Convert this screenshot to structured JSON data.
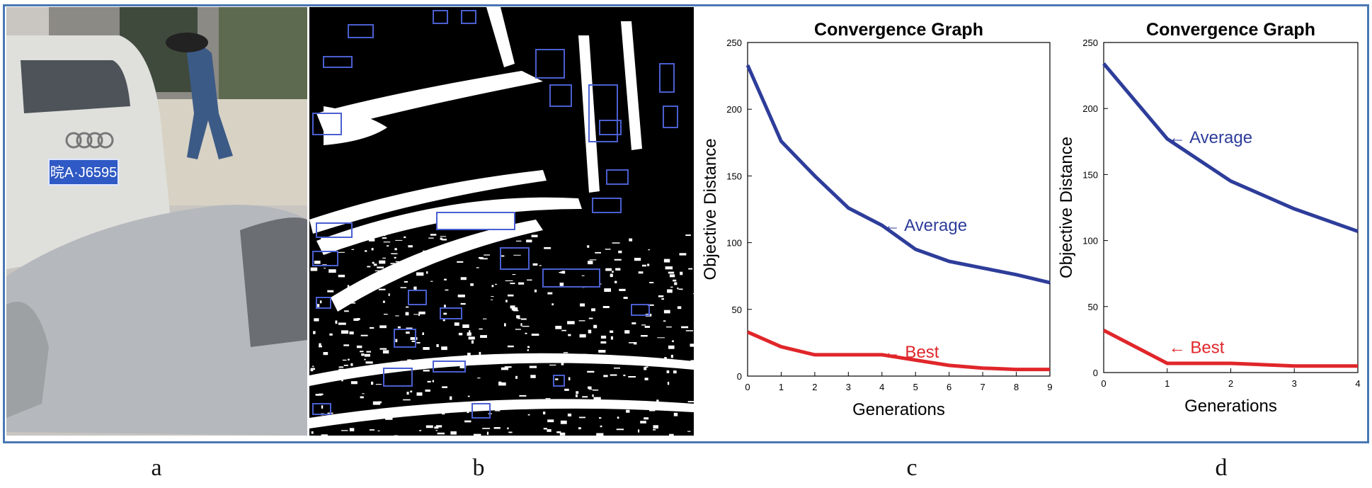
{
  "captions": [
    "a",
    "b",
    "c",
    "d"
  ],
  "plate_text": "晥A·J6595",
  "colors": {
    "frame": "#4a78b4",
    "average": "#2e3d9a",
    "best": "#e0262a",
    "box": "#4a5fd0"
  },
  "chart_data": [
    {
      "type": "line",
      "title": "Convergence Graph",
      "xlabel": "Generations",
      "ylabel": "Objective Distance",
      "xlim": [
        0,
        9
      ],
      "ylim": [
        0,
        250
      ],
      "xticks": [
        0,
        1,
        2,
        3,
        4,
        5,
        6,
        7,
        8,
        9
      ],
      "yticks": [
        0,
        50,
        100,
        150,
        200,
        250
      ],
      "series": [
        {
          "name": "Average",
          "label": "← Average",
          "x": [
            0,
            1,
            2,
            3,
            4,
            5,
            6,
            7,
            8,
            9
          ],
          "values": [
            233,
            176,
            150,
            126,
            113,
            95,
            86,
            81,
            76,
            70
          ]
        },
        {
          "name": "Best",
          "label": "← Best",
          "x": [
            0,
            1,
            2,
            3,
            4,
            5,
            6,
            7,
            8,
            9
          ],
          "values": [
            33,
            22,
            16,
            16,
            16,
            12,
            8,
            6,
            5,
            5
          ]
        }
      ],
      "annotations": [
        {
          "series": "Average",
          "x": 4,
          "y": 113
        },
        {
          "series": "Best",
          "x": 4,
          "y": 18
        }
      ]
    },
    {
      "type": "line",
      "title": "Convergence Graph",
      "xlabel": "Generations",
      "ylabel": "Objective Distance",
      "xlim": [
        0,
        4
      ],
      "ylim": [
        0,
        250
      ],
      "xticks": [
        0,
        1,
        2,
        3,
        4
      ],
      "yticks": [
        0,
        50,
        100,
        150,
        200,
        250
      ],
      "series": [
        {
          "name": "Average",
          "label": "← Average",
          "x": [
            0,
            1,
            2,
            3,
            4
          ],
          "values": [
            234,
            177,
            145,
            124,
            107
          ]
        },
        {
          "name": "Best",
          "label": "← Best",
          "x": [
            0,
            1,
            2,
            3,
            4
          ],
          "values": [
            32,
            7,
            7,
            5,
            5
          ]
        }
      ],
      "annotations": [
        {
          "series": "Average",
          "x": 1,
          "y": 178
        },
        {
          "series": "Best",
          "x": 1,
          "y": 19
        }
      ]
    }
  ]
}
